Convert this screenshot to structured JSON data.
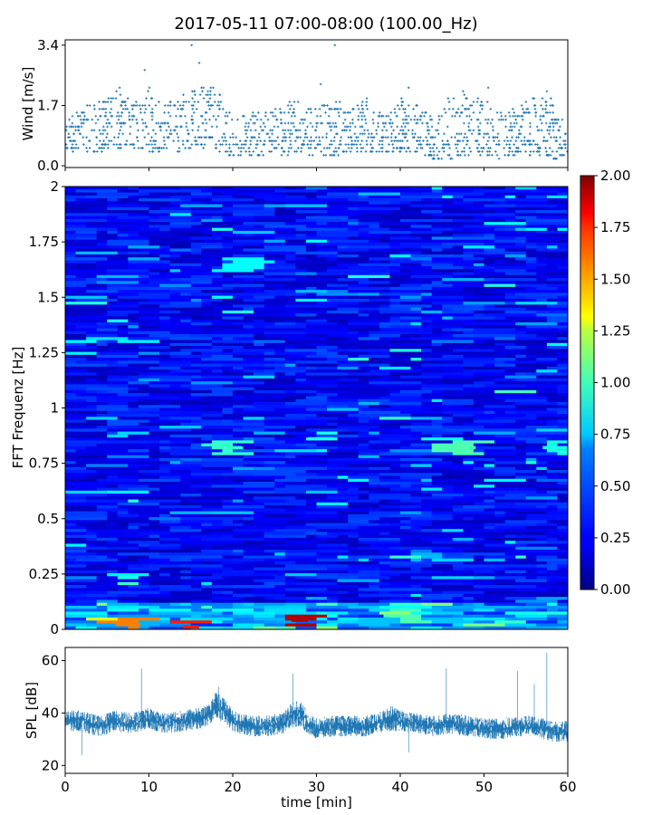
{
  "figure": {
    "title": "2017-05-11 07:00-08:00 (100.00_Hz)"
  },
  "chart_data": [
    {
      "type": "scatter",
      "name_role": "wind",
      "ylabel": "Wind [m/s]",
      "xlabel": "",
      "xlim": [
        0,
        60
      ],
      "ylim": [
        -0.05,
        3.55
      ],
      "yticks": [
        0.0,
        1.7,
        3.4
      ],
      "ytick_labels": [
        "0.0",
        "1.7",
        "3.4"
      ],
      "xticks": [
        0,
        10,
        20,
        30,
        40,
        50,
        60
      ],
      "grid": false,
      "color": "#1f77b4",
      "marker": "plus",
      "sample_points": [
        [
          1,
          1.1
        ],
        [
          4.5,
          0.9
        ],
        [
          6.5,
          2.2
        ],
        [
          9.5,
          2.7
        ],
        [
          15.1,
          3.4
        ],
        [
          16,
          2.9
        ],
        [
          18,
          1.3
        ],
        [
          21,
          0.5
        ],
        [
          24.5,
          1.0
        ],
        [
          27,
          1.2
        ],
        [
          30.5,
          2.3
        ],
        [
          32.2,
          3.4
        ],
        [
          36,
          1.9
        ],
        [
          41,
          2.2
        ],
        [
          44,
          0.6
        ],
        [
          47.5,
          2.1
        ],
        [
          50.5,
          2.2
        ],
        [
          54,
          1.4
        ],
        [
          57.5,
          2.1
        ],
        [
          59.5,
          0.7
        ]
      ],
      "envelope": {
        "x": [
          0,
          2,
          4,
          6,
          8,
          10,
          12,
          14,
          16,
          18,
          20,
          22,
          24,
          26,
          28,
          30,
          32,
          34,
          36,
          38,
          40,
          42,
          44,
          46,
          48,
          50,
          52,
          54,
          56,
          58,
          60
        ],
        "y_low": [
          0.5,
          0.3,
          0.4,
          0.5,
          0.5,
          0.4,
          0.4,
          0.4,
          0.5,
          0.4,
          0.3,
          0.3,
          0.2,
          0.3,
          0.4,
          0.3,
          0.3,
          0.4,
          0.4,
          0.4,
          0.4,
          0.4,
          0.2,
          0.2,
          0.3,
          0.3,
          0.2,
          0.3,
          0.3,
          0.2,
          0.3
        ],
        "y_high": [
          1.8,
          1.6,
          1.9,
          2.2,
          1.9,
          2.2,
          1.7,
          2.1,
          2.2,
          2.3,
          1.4,
          1.5,
          1.6,
          1.7,
          1.9,
          1.6,
          1.9,
          1.6,
          1.9,
          1.4,
          1.9,
          1.8,
          1.3,
          2.0,
          2.0,
          1.9,
          1.5,
          1.7,
          2.0,
          1.9,
          1.0
        ]
      }
    },
    {
      "type": "heatmap",
      "name_role": "spectrogram",
      "ylabel": "FFT Frequenz [Hz]",
      "xlabel": "",
      "xlim": [
        0,
        60
      ],
      "ylim": [
        0,
        2
      ],
      "yticks": [
        0,
        0.25,
        0.5,
        0.75,
        1,
        1.25,
        1.5,
        1.75,
        2
      ],
      "ytick_labels": [
        "0",
        "0.25",
        "0.5",
        "0.75",
        "1",
        "1.25",
        "1.5",
        "1.75",
        "2"
      ],
      "colormap": "jet",
      "colorbar": {
        "vmin": 0,
        "vmax": 2,
        "ticks": [
          0,
          0.25,
          0.5,
          0.75,
          1.0,
          1.25,
          1.5,
          1.75,
          2.0
        ],
        "tick_labels": [
          "0.00",
          "0.25",
          "0.50",
          "0.75",
          "1.00",
          "1.25",
          "1.50",
          "1.75",
          "2.00"
        ]
      },
      "typical_value": 0.25,
      "features": [
        {
          "x": [
            18,
            21
          ],
          "f": 0.82,
          "value": 0.85
        },
        {
          "x": [
            45,
            49
          ],
          "f": 0.82,
          "value": 0.9
        },
        {
          "x": [
            57,
            60
          ],
          "f": 0.82,
          "value": 0.8
        },
        {
          "x": [
            29,
            32
          ],
          "f": 0.86,
          "value": 0.8
        },
        {
          "x": [
            20,
            23
          ],
          "f": 1.65,
          "value": 0.75
        },
        {
          "x": [
            27,
            29
          ],
          "f": 0.04,
          "value": 1.9
        },
        {
          "x": [
            14,
            16
          ],
          "f": 0.01,
          "value": 1.7
        },
        {
          "x": [
            6,
            9
          ],
          "f": 0.02,
          "value": 1.5
        },
        {
          "x": [
            38,
            42
          ],
          "f": 0.06,
          "value": 0.9
        }
      ]
    },
    {
      "type": "line",
      "name_role": "spl",
      "ylabel": "SPL [dB]",
      "xlabel": "time [min]",
      "xlim": [
        0,
        60
      ],
      "ylim": [
        17,
        65
      ],
      "yticks": [
        20,
        40,
        60
      ],
      "ytick_labels": [
        "20",
        "40",
        "60"
      ],
      "xticks": [
        0,
        10,
        20,
        30,
        40,
        50,
        60
      ],
      "xtick_labels": [
        "0",
        "10",
        "20",
        "30",
        "40",
        "50",
        "60"
      ],
      "color": "#1f77b4",
      "x": [
        0,
        2,
        4,
        6,
        8,
        10,
        12,
        14,
        16,
        17,
        18,
        19,
        20,
        22,
        24,
        26,
        27,
        28,
        29,
        30,
        32,
        34,
        36,
        38,
        39,
        40,
        42,
        44,
        46,
        48,
        50,
        52,
        54,
        56,
        58,
        60
      ],
      "y_mean": [
        37,
        37,
        35,
        37,
        36,
        38,
        36,
        37,
        38,
        39,
        43,
        41,
        37,
        35,
        35,
        36,
        39,
        40,
        36,
        34,
        35,
        35,
        35,
        37,
        38,
        37,
        36,
        35,
        36,
        35,
        34,
        34,
        35,
        35,
        33,
        33
      ],
      "y_band": [
        4,
        4,
        4,
        4,
        4,
        4,
        4,
        4,
        4,
        4,
        5,
        5,
        4,
        4,
        4,
        4,
        5,
        5,
        4,
        4,
        4,
        4,
        4,
        4,
        5,
        4,
        4,
        4,
        4,
        4,
        4,
        4,
        4,
        4,
        4,
        4
      ],
      "spikes": [
        {
          "x": 9.1,
          "y": 57
        },
        {
          "x": 18.3,
          "y": 50
        },
        {
          "x": 27.2,
          "y": 55
        },
        {
          "x": 45.5,
          "y": 57
        },
        {
          "x": 54,
          "y": 56
        },
        {
          "x": 57.5,
          "y": 63
        },
        {
          "x": 56,
          "y": 51
        },
        {
          "x": 2,
          "y": 24
        },
        {
          "x": 41,
          "y": 25
        }
      ]
    }
  ]
}
